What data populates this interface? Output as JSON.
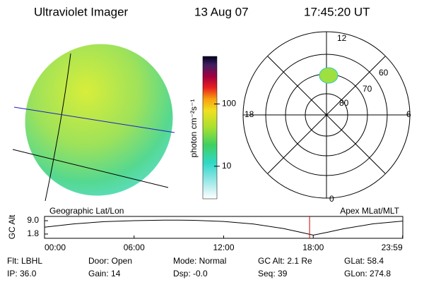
{
  "header": {
    "title": "Ultraviolet Imager",
    "date": "13 Aug 07",
    "time": "17:45:20 UT"
  },
  "image_panel": {
    "label": "Geographic Lat/Lon"
  },
  "colorbar": {
    "label": "photon cm⁻²s⁻¹",
    "log": true,
    "ylim": [
      3,
      580
    ],
    "yticks": [
      10,
      100
    ]
  },
  "polar_panel": {
    "label": "Apex MLat/MLT",
    "mlt_labels": [
      "12",
      "6",
      "0",
      "18"
    ],
    "lat_labels": [
      "60",
      "70",
      "80"
    ]
  },
  "altitude": {
    "ylabel": "GC Alt",
    "x": [
      0,
      2,
      4,
      6,
      8,
      9,
      10,
      12,
      14,
      16,
      17,
      18,
      19,
      20,
      22,
      23.98
    ],
    "values": [
      5.5,
      7.3,
      8.5,
      9.0,
      9.3,
      9.3,
      9.2,
      8.6,
      7.2,
      4.8,
      3.0,
      1.2,
      2.8,
      4.6,
      7.3,
      8.8
    ],
    "color": "#000000",
    "current_time": 17.756,
    "marker_color": "#cc0000",
    "xlim": [
      0,
      24
    ],
    "ylim": [
      -0.5,
      11.3
    ],
    "xticks": [
      {
        "value": 0,
        "label": "00:00"
      },
      {
        "value": 6,
        "label": "06:00"
      },
      {
        "value": 12,
        "label": "12:00"
      },
      {
        "value": 18,
        "label": "18:00"
      },
      {
        "value": 23.983,
        "label": "23:59"
      }
    ],
    "yticks": [
      {
        "value": 9,
        "label": "9.0"
      },
      {
        "value": 1.8,
        "label": "1.8"
      }
    ]
  },
  "info": [
    [
      "Flt: LBHL",
      "Door: Open",
      "Mode: Normal",
      "GC Alt: 2.1 Re",
      "GLat: 58.4"
    ],
    [
      "IP: 36.0",
      "Gain: 14",
      "Dsp: -0.0",
      "Seq: 39",
      "GLon: 274.8"
    ]
  ]
}
